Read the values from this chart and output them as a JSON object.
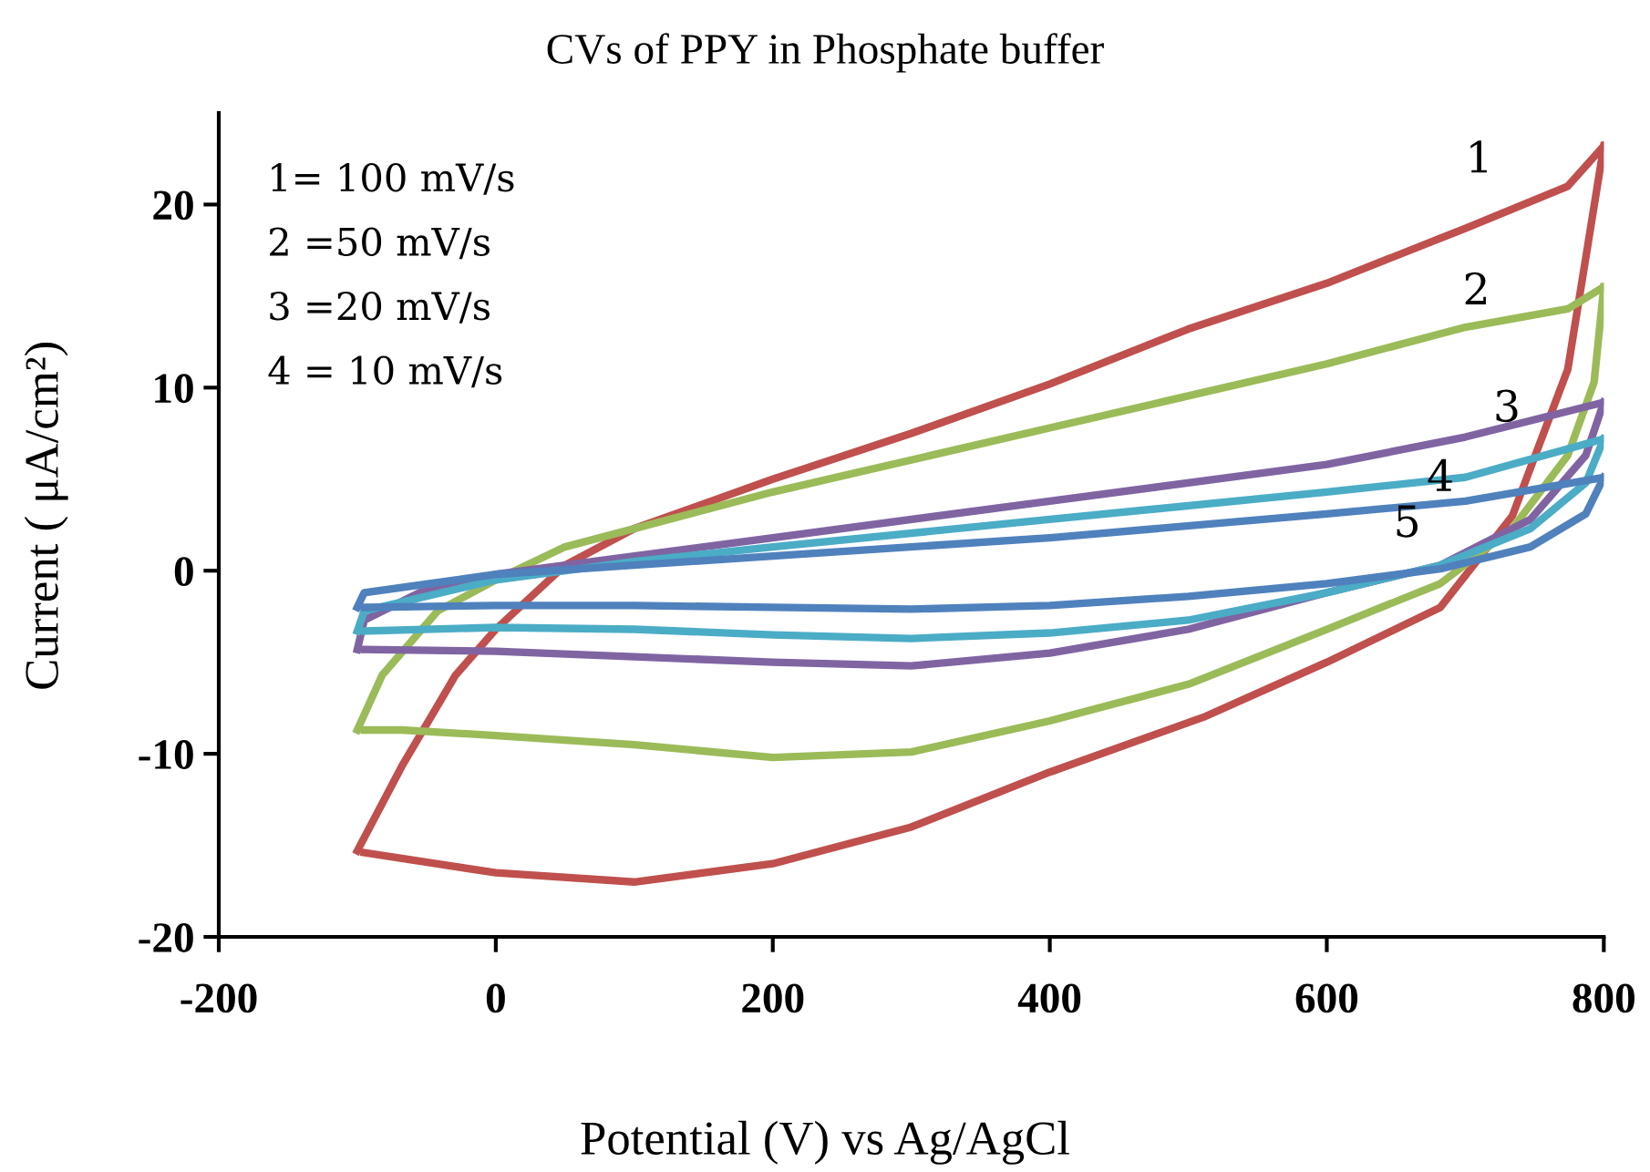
{
  "chart_data": {
    "type": "line",
    "title": "CVs of PPY in Phosphate buffer",
    "xlabel": "Potential (V) vs Ag/AgCl",
    "ylabel": "Current ( μA/cm²)",
    "xlim": [
      -200,
      800
    ],
    "xticks": [
      -200,
      0,
      200,
      400,
      600,
      800
    ],
    "ylim": [
      -20,
      25
    ],
    "yticks": [
      -20,
      -10,
      0,
      10,
      20
    ],
    "grid": false,
    "legend": false,
    "marker": "none",
    "line_style": "solid",
    "series": [
      {
        "color": "#c0504d",
        "x": [
          -100,
          -68,
          -29,
          0,
          50,
          100,
          200,
          300,
          400,
          500,
          600,
          700,
          774,
          800
        ],
        "values": [
          -15.3,
          -10.7,
          -5.7,
          -3.2,
          0.3,
          2.3,
          5,
          7.5,
          10.2,
          13.2,
          15.7,
          18.7,
          21,
          23.2
        ]
      },
      {
        "color": "#c0504d",
        "x": [
          -95,
          0,
          100,
          200,
          300,
          400,
          511,
          600,
          682,
          734,
          774,
          800
        ],
        "values": [
          -15.4,
          -16.5,
          -17,
          -16,
          -14,
          -11,
          -8,
          -5,
          -2,
          3,
          11,
          23.2
        ]
      },
      {
        "color": "#9bbb59",
        "x": [
          -100,
          -82,
          -42,
          0,
          50,
          200,
          400,
          600,
          700,
          774,
          800
        ],
        "values": [
          -8.7,
          -5.7,
          -2.2,
          -0.5,
          1.3,
          4.3,
          7.8,
          11.3,
          13.3,
          14.3,
          15.5
        ]
      },
      {
        "color": "#9bbb59",
        "x": [
          -95,
          -68,
          0,
          100,
          200,
          300,
          400,
          500,
          600,
          682,
          734,
          774,
          793,
          800
        ],
        "values": [
          -8.7,
          -8.7,
          -9,
          -9.5,
          -10.2,
          -9.9,
          -8.2,
          -6.2,
          -3.2,
          -0.7,
          2.3,
          6.3,
          10.3,
          15.5
        ]
      },
      {
        "color": "#8064a2",
        "x": [
          -100,
          -95,
          -55,
          0,
          100,
          200,
          400,
          600,
          700,
          800
        ],
        "values": [
          -4.3,
          -2.7,
          -1.2,
          -0.2,
          0.8,
          1.8,
          3.8,
          5.8,
          7.3,
          9.2
        ]
      },
      {
        "color": "#8064a2",
        "x": [
          -95,
          0,
          100,
          200,
          300,
          400,
          500,
          600,
          682,
          747,
          787,
          800
        ],
        "values": [
          -4.3,
          -4.4,
          -4.7,
          -5,
          -5.2,
          -4.5,
          -3.2,
          -1.2,
          0.3,
          2.8,
          6.3,
          9.2
        ]
      },
      {
        "color": "#4bacc6",
        "x": [
          -100,
          -95,
          0,
          100,
          200,
          400,
          600,
          700,
          800
        ],
        "values": [
          -3.3,
          -2.2,
          -0.5,
          0.5,
          1.3,
          2.8,
          4.3,
          5.1,
          7.2
        ]
      },
      {
        "color": "#4bacc6",
        "x": [
          -95,
          0,
          100,
          200,
          300,
          400,
          500,
          600,
          682,
          747,
          787,
          800
        ],
        "values": [
          -3.3,
          -3.1,
          -3.2,
          -3.5,
          -3.7,
          -3.4,
          -2.7,
          -1.2,
          0.3,
          2.3,
          4.8,
          7.2
        ]
      },
      {
        "color": "#4f81bd",
        "x": [
          -100,
          -95,
          0,
          100,
          200,
          400,
          600,
          700,
          800
        ],
        "values": [
          -2,
          -1.2,
          -0.2,
          0.3,
          0.8,
          1.8,
          3.1,
          3.8,
          5.1
        ]
      },
      {
        "color": "#4f81bd",
        "x": [
          -95,
          0,
          100,
          200,
          300,
          400,
          500,
          600,
          682,
          747,
          787,
          800
        ],
        "values": [
          -2,
          -1.9,
          -1.9,
          -2,
          -2.1,
          -1.9,
          -1.4,
          -0.7,
          0.1,
          1.3,
          3.1,
          5.1
        ]
      }
    ],
    "annotations": [
      "1= 100 mV/s",
      "2 =50 mV/s",
      "3 =20 mV/s",
      "4 = 10 mV/s",
      "1",
      "2",
      "3",
      "4",
      "5"
    ]
  }
}
